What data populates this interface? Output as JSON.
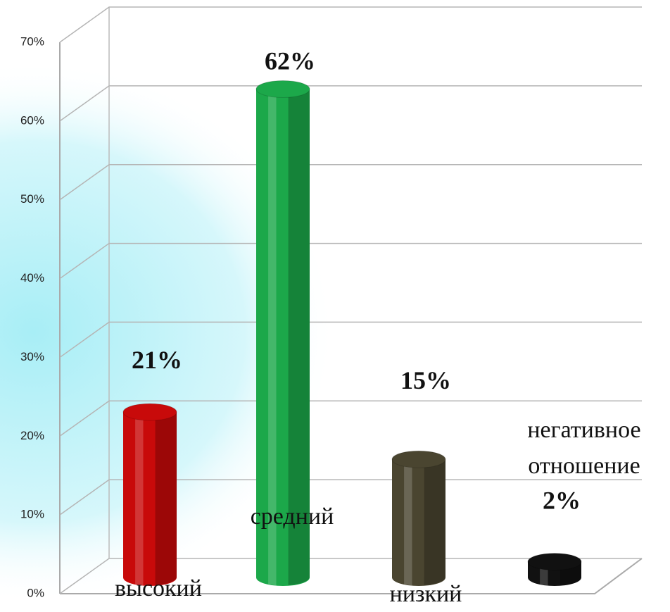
{
  "chart_data": {
    "type": "bar3d",
    "categories": [
      "высокий",
      "средний",
      "низкий",
      "негативное отношение"
    ],
    "values": [
      21,
      62,
      15,
      2
    ],
    "value_labels": [
      "21%",
      "62%",
      "15%",
      "2%"
    ],
    "colors": [
      "#c80a0a",
      "#1ca84a",
      "#4a4530",
      "#111111"
    ],
    "ylim": [
      0,
      70
    ],
    "yticks": [
      {
        "value": 0,
        "label": "0%"
      },
      {
        "value": 10,
        "label": "10%"
      },
      {
        "value": 20,
        "label": "20%"
      },
      {
        "value": 30,
        "label": "30%"
      },
      {
        "value": 40,
        "label": "40%"
      },
      {
        "value": 50,
        "label": "50%"
      },
      {
        "value": 60,
        "label": "60%"
      },
      {
        "value": 70,
        "label": "70%"
      }
    ],
    "grid": true
  }
}
